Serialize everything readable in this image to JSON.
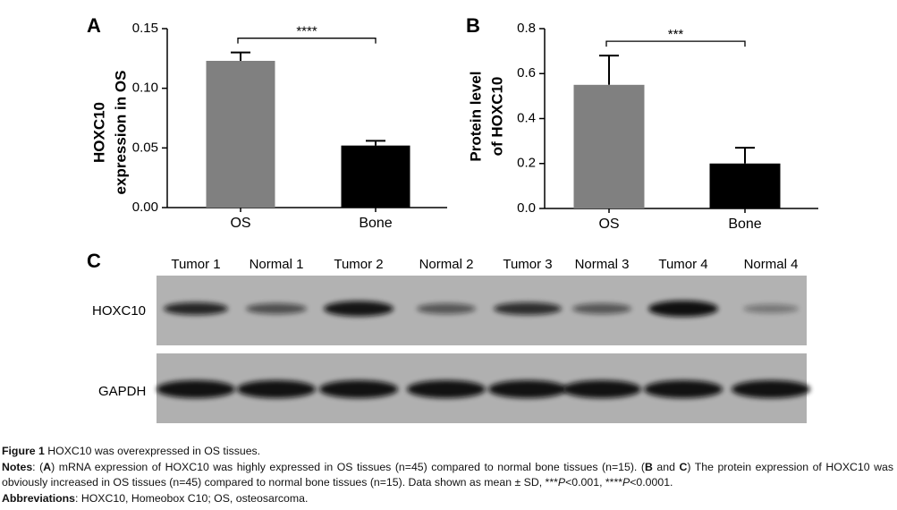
{
  "chart_data": [
    {
      "type": "bar",
      "panel": "A",
      "ylabel": [
        "HOXC10",
        "expression in OS"
      ],
      "categories": [
        "OS",
        "Bone"
      ],
      "values": [
        0.123,
        0.052
      ],
      "errors": [
        0.007,
        0.004
      ],
      "colors": [
        "#808080",
        "#000000"
      ],
      "ylim": [
        0,
        0.15
      ],
      "yticks": [
        {
          "value": 0,
          "label": "0.00"
        },
        0.05,
        {
          "value": 0.1,
          "label": "0.10"
        },
        0.15
      ],
      "annotation": "****"
    },
    {
      "type": "bar",
      "panel": "B",
      "ylabel": [
        "Protein level",
        "of HOXC10"
      ],
      "categories": [
        "OS",
        "Bone"
      ],
      "values": [
        0.55,
        0.2
      ],
      "errors": [
        0.13,
        0.07
      ],
      "colors": [
        "#808080",
        "#000000"
      ],
      "ylim": [
        0,
        0.8
      ],
      "yticks": [
        {
          "value": 0,
          "label": "0.0"
        },
        0.2,
        0.4,
        0.6,
        0.8
      ],
      "annotation": "***"
    }
  ],
  "blot": {
    "panel": "C",
    "lanes": [
      "Tumor 1",
      "Normal 1",
      "Tumor 2",
      "Normal 2",
      "Tumor 3",
      "Normal 3",
      "Tumor 4",
      "Normal 4"
    ],
    "rows": [
      "HOXC10",
      "GAPDH"
    ]
  },
  "caption": {
    "figure_label": "Figure 1",
    "figure_title": "HOXC10 was overexpressed in OS tissues.",
    "notes": [
      "Notes",
      ": (",
      "A",
      ") mRNA expression of HOXC10 was highly expressed in OS tissues (n=45) compared to normal bone tissues (n=15). (",
      "B",
      " and ",
      "C",
      ") The protein expression of HOXC10 was obviously increased in OS tissues (n=45) compared to normal bone tissues (n=15). Data shown as mean ± SD, ***",
      "P",
      "<0.001, ****",
      "P",
      "<0.0001."
    ],
    "abbreviations_label": "Abbreviations",
    "abbreviations": ": HOXC10, Homeobox C10; OS, osteosarcoma."
  }
}
